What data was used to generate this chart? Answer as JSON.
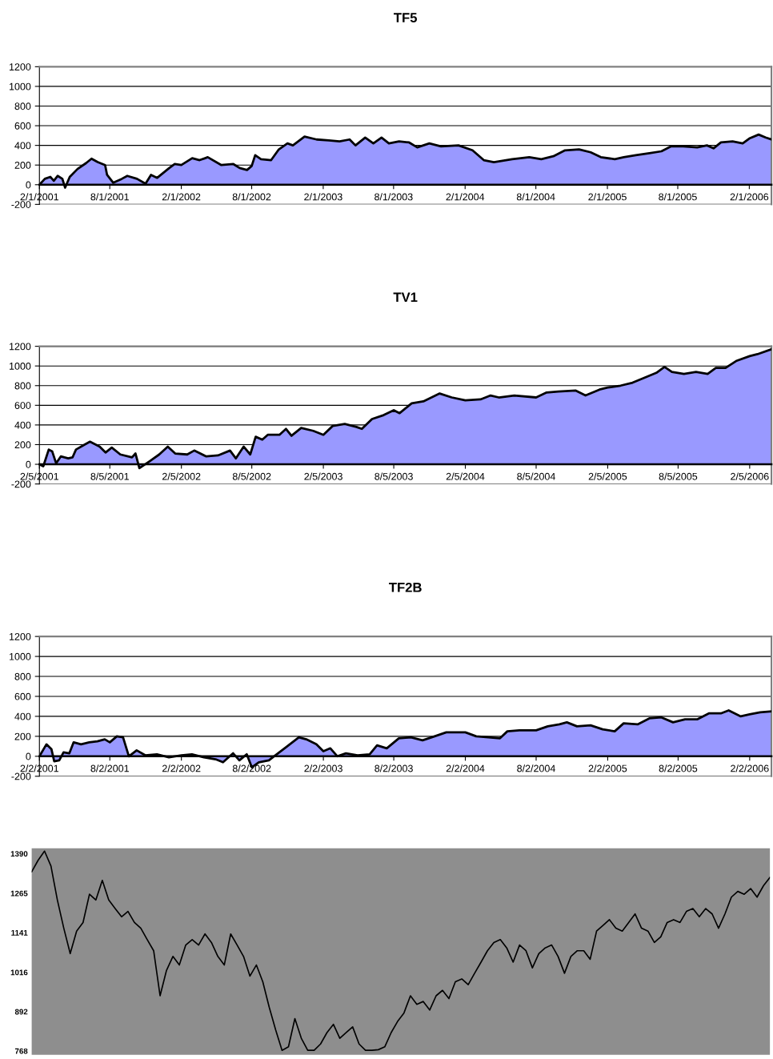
{
  "chart_data": [
    {
      "type": "area",
      "title": "TF5",
      "grid": "y",
      "ylim": [
        -200,
        1200
      ],
      "yticks": [
        -200,
        0,
        200,
        400,
        600,
        800,
        1000,
        1200
      ],
      "xlim": [
        "2001-02-01",
        "2006-03-30"
      ],
      "xticks": [
        {
          "value": "2001-02-01",
          "label": "2/1/2001"
        },
        {
          "value": "2001-08-01",
          "label": "8/1/2001"
        },
        {
          "value": "2002-02-01",
          "label": "2/1/2002"
        },
        {
          "value": "2002-08-01",
          "label": "8/1/2002"
        },
        {
          "value": "2003-02-01",
          "label": "2/1/2003"
        },
        {
          "value": "2003-08-01",
          "label": "8/1/2003"
        },
        {
          "value": "2004-02-01",
          "label": "2/1/2004"
        },
        {
          "value": "2004-08-01",
          "label": "8/1/2004"
        },
        {
          "value": "2005-02-01",
          "label": "2/1/2005"
        },
        {
          "value": "2005-08-01",
          "label": "8/1/2005"
        },
        {
          "value": "2006-02-01",
          "label": "2/1/2006"
        }
      ],
      "x": [
        "2001-02-01",
        "2001-02-15",
        "2001-03-01",
        "2001-03-10",
        "2001-03-20",
        "2001-04-01",
        "2001-04-08",
        "2001-04-20",
        "2001-05-10",
        "2001-06-01",
        "2001-06-15",
        "2001-07-01",
        "2001-07-20",
        "2001-07-25",
        "2001-08-10",
        "2001-09-01",
        "2001-09-15",
        "2001-10-10",
        "2001-11-01",
        "2001-11-15",
        "2001-12-01",
        "2002-01-01",
        "2002-01-15",
        "2002-02-01",
        "2002-03-01",
        "2002-03-20",
        "2002-04-10",
        "2002-05-15",
        "2002-06-15",
        "2002-07-01",
        "2002-07-20",
        "2002-08-01",
        "2002-08-10",
        "2002-08-25",
        "2002-09-20",
        "2002-10-10",
        "2002-11-01",
        "2002-11-15",
        "2002-12-15",
        "2003-01-15",
        "2003-02-15",
        "2003-03-15",
        "2003-04-10",
        "2003-04-25",
        "2003-05-20",
        "2003-06-10",
        "2003-07-01",
        "2003-07-20",
        "2003-08-15",
        "2003-09-10",
        "2003-10-01",
        "2003-11-01",
        "2003-12-01",
        "2004-01-15",
        "2004-02-20",
        "2004-03-20",
        "2004-04-15",
        "2004-06-01",
        "2004-07-15",
        "2004-08-15",
        "2004-09-15",
        "2004-10-15",
        "2004-11-20",
        "2004-12-20",
        "2005-01-15",
        "2005-02-20",
        "2005-03-15",
        "2005-04-15",
        "2005-05-20",
        "2005-06-20",
        "2005-07-15",
        "2005-08-15",
        "2005-09-20",
        "2005-10-15",
        "2005-11-01",
        "2005-11-20",
        "2005-12-20",
        "2006-01-15",
        "2006-02-01",
        "2006-02-25",
        "2006-03-15",
        "2006-03-30"
      ],
      "series": [
        {
          "color": "#9999ff",
          "values": [
            0,
            60,
            80,
            40,
            90,
            60,
            -30,
            80,
            160,
            220,
            265,
            230,
            200,
            100,
            20,
            60,
            90,
            60,
            10,
            100,
            70,
            170,
            210,
            200,
            270,
            250,
            280,
            200,
            210,
            170,
            150,
            190,
            300,
            260,
            250,
            360,
            420,
            400,
            490,
            460,
            450,
            440,
            460,
            400,
            480,
            420,
            480,
            420,
            440,
            430,
            380,
            420,
            390,
            400,
            350,
            250,
            230,
            260,
            280,
            260,
            290,
            350,
            360,
            330,
            280,
            260,
            280,
            300,
            320,
            340,
            390,
            390,
            380,
            400,
            370,
            430,
            440,
            420,
            470,
            510,
            480,
            460
          ]
        }
      ]
    },
    {
      "type": "area",
      "title": "TV1",
      "grid": "y",
      "ylim": [
        -200,
        1200
      ],
      "yticks": [
        -200,
        0,
        200,
        400,
        600,
        800,
        1000,
        1200
      ],
      "xlim": [
        "2001-02-05",
        "2006-04-02"
      ],
      "xticks": [
        {
          "value": "2001-02-05",
          "label": "2/5/2001"
        },
        {
          "value": "2001-08-05",
          "label": "8/5/2001"
        },
        {
          "value": "2002-02-05",
          "label": "2/5/2002"
        },
        {
          "value": "2002-08-05",
          "label": "8/5/2002"
        },
        {
          "value": "2003-02-05",
          "label": "2/5/2003"
        },
        {
          "value": "2003-08-05",
          "label": "8/5/2003"
        },
        {
          "value": "2004-02-05",
          "label": "2/5/2004"
        },
        {
          "value": "2004-08-05",
          "label": "8/5/2004"
        },
        {
          "value": "2005-02-05",
          "label": "2/5/2005"
        },
        {
          "value": "2005-08-05",
          "label": "8/5/2005"
        },
        {
          "value": "2006-02-05",
          "label": "2/5/2006"
        }
      ],
      "x": [
        "2001-02-05",
        "2001-02-15",
        "2001-03-01",
        "2001-03-10",
        "2001-03-20",
        "2001-04-01",
        "2001-04-20",
        "2001-05-01",
        "2001-05-10",
        "2001-06-01",
        "2001-06-15",
        "2001-07-10",
        "2001-07-25",
        "2001-08-10",
        "2001-09-01",
        "2001-10-01",
        "2001-10-10",
        "2001-10-20",
        "2001-11-15",
        "2001-12-10",
        "2002-01-01",
        "2002-01-20",
        "2002-02-20",
        "2002-03-10",
        "2002-04-10",
        "2002-05-10",
        "2002-06-10",
        "2002-06-25",
        "2002-07-15",
        "2002-08-01",
        "2002-08-15",
        "2002-09-01",
        "2002-09-15",
        "2002-10-15",
        "2002-11-01",
        "2002-11-15",
        "2002-12-10",
        "2003-01-10",
        "2003-02-05",
        "2003-03-01",
        "2003-04-01",
        "2003-05-01",
        "2003-05-15",
        "2003-06-10",
        "2003-07-10",
        "2003-08-05",
        "2003-08-20",
        "2003-09-20",
        "2003-10-20",
        "2003-12-01",
        "2004-01-01",
        "2004-02-05",
        "2004-03-15",
        "2004-04-10",
        "2004-05-01",
        "2004-06-10",
        "2004-08-05",
        "2004-09-01",
        "2004-10-01",
        "2004-11-15",
        "2004-12-10",
        "2005-01-15",
        "2005-02-05",
        "2005-03-10",
        "2005-04-10",
        "2005-05-10",
        "2005-06-10",
        "2005-07-01",
        "2005-07-20",
        "2005-08-20",
        "2005-09-20",
        "2005-10-20",
        "2005-11-10",
        "2005-12-05",
        "2006-01-01",
        "2006-02-05",
        "2006-02-25",
        "2006-04-02"
      ],
      "series": [
        {
          "color": "#9999ff",
          "values": [
            0,
            -20,
            150,
            130,
            10,
            80,
            60,
            70,
            150,
            200,
            230,
            180,
            120,
            170,
            100,
            70,
            110,
            -40,
            30,
            100,
            180,
            110,
            100,
            140,
            80,
            90,
            140,
            60,
            180,
            100,
            280,
            250,
            300,
            300,
            360,
            290,
            370,
            340,
            300,
            390,
            410,
            380,
            360,
            460,
            500,
            550,
            520,
            620,
            640,
            720,
            680,
            650,
            660,
            700,
            680,
            700,
            680,
            730,
            740,
            750,
            700,
            760,
            780,
            800,
            830,
            880,
            930,
            990,
            940,
            920,
            940,
            920,
            980,
            980,
            1050,
            1100,
            1120,
            1170
          ]
        }
      ]
    },
    {
      "type": "area",
      "title": "TF2B",
      "grid": "y",
      "ylim": [
        -200,
        1200
      ],
      "yticks": [
        -200,
        0,
        200,
        400,
        600,
        800,
        1000,
        1200
      ],
      "xlim": [
        "2001-02-02",
        "2006-03-30"
      ],
      "xticks": [
        {
          "value": "2001-02-02",
          "label": "2/2/2001"
        },
        {
          "value": "2001-08-02",
          "label": "8/2/2001"
        },
        {
          "value": "2002-02-02",
          "label": "2/2/2002"
        },
        {
          "value": "2002-08-02",
          "label": "8/2/2002"
        },
        {
          "value": "2003-02-02",
          "label": "2/2/2003"
        },
        {
          "value": "2003-08-02",
          "label": "8/2/2003"
        },
        {
          "value": "2004-02-02",
          "label": "2/2/2004"
        },
        {
          "value": "2004-08-02",
          "label": "8/2/2004"
        },
        {
          "value": "2005-02-02",
          "label": "2/2/2005"
        },
        {
          "value": "2005-08-02",
          "label": "8/2/2005"
        },
        {
          "value": "2006-02-02",
          "label": "2/2/2006"
        }
      ],
      "x": [
        "2001-02-02",
        "2001-02-20",
        "2001-03-05",
        "2001-03-12",
        "2001-03-25",
        "2001-04-05",
        "2001-04-20",
        "2001-05-01",
        "2001-05-20",
        "2001-06-10",
        "2001-07-01",
        "2001-07-20",
        "2001-08-02",
        "2001-08-20",
        "2001-09-05",
        "2001-09-20",
        "2001-10-10",
        "2001-11-01",
        "2001-12-01",
        "2002-01-01",
        "2002-02-02",
        "2002-03-01",
        "2002-04-01",
        "2002-05-01",
        "2002-05-20",
        "2002-06-15",
        "2002-07-01",
        "2002-07-20",
        "2002-08-02",
        "2002-08-20",
        "2002-09-15",
        "2002-10-05",
        "2002-11-01",
        "2002-12-01",
        "2002-12-20",
        "2003-01-15",
        "2003-02-02",
        "2003-02-20",
        "2003-03-10",
        "2003-04-01",
        "2003-05-01",
        "2003-06-01",
        "2003-06-20",
        "2003-07-15",
        "2003-08-15",
        "2003-09-15",
        "2003-10-15",
        "2003-11-15",
        "2003-12-15",
        "2004-02-02",
        "2004-03-01",
        "2004-04-01",
        "2004-05-01",
        "2004-05-20",
        "2004-06-20",
        "2004-08-02",
        "2004-09-01",
        "2004-10-01",
        "2004-10-20",
        "2004-11-15",
        "2004-12-20",
        "2005-01-20",
        "2005-02-20",
        "2005-03-15",
        "2005-04-20",
        "2005-05-20",
        "2005-06-20",
        "2005-07-20",
        "2005-08-20",
        "2005-09-20",
        "2005-10-20",
        "2005-11-20",
        "2005-12-10",
        "2006-01-10",
        "2006-02-02",
        "2006-03-01",
        "2006-03-30"
      ],
      "series": [
        {
          "color": "#9999ff",
          "values": [
            0,
            120,
            70,
            -50,
            -40,
            40,
            30,
            140,
            120,
            140,
            150,
            170,
            140,
            200,
            190,
            0,
            60,
            10,
            20,
            -10,
            10,
            20,
            -10,
            -30,
            -60,
            30,
            -40,
            20,
            -110,
            -60,
            -40,
            20,
            100,
            190,
            170,
            120,
            50,
            80,
            0,
            30,
            10,
            20,
            110,
            80,
            180,
            190,
            160,
            200,
            240,
            240,
            200,
            190,
            180,
            250,
            260,
            260,
            300,
            320,
            340,
            300,
            310,
            270,
            250,
            330,
            320,
            380,
            390,
            340,
            370,
            370,
            430,
            430,
            460,
            400,
            420,
            440,
            450
          ]
        }
      ]
    },
    {
      "type": "line",
      "tick_labels": "y",
      "ylim": [
        756,
        1407
      ],
      "yticks": [
        768,
        892,
        1016,
        1141,
        1265,
        1390
      ],
      "categories": [
        null,
        null,
        null,
        null,
        null,
        null,
        null,
        null,
        null,
        null,
        null,
        null,
        null,
        null,
        null,
        null,
        null,
        null,
        null,
        null,
        null,
        null,
        null,
        null,
        null,
        null,
        null,
        null,
        null,
        null,
        null,
        null,
        null,
        null,
        null,
        null,
        null,
        null,
        null,
        null,
        null,
        null,
        null,
        null,
        null,
        null,
        null,
        null,
        null,
        null,
        null,
        null,
        null,
        null,
        null,
        null,
        null,
        null,
        null,
        null,
        null,
        null,
        null,
        null,
        null,
        null,
        null,
        null,
        null,
        null,
        null,
        null,
        null,
        null,
        null,
        null,
        null,
        null,
        null,
        null,
        null,
        null,
        null,
        null,
        null,
        null,
        null,
        null,
        null,
        null,
        null,
        null,
        null,
        null,
        null,
        null,
        null,
        null,
        null,
        null,
        null,
        null,
        null,
        null,
        null,
        null,
        null,
        null,
        null,
        null,
        null,
        null,
        null,
        null,
        null,
        null
      ],
      "series": [
        {
          "color": "#000000",
          "values": [
            1333,
            1369,
            1398,
            1351,
            1244,
            1155,
            1075,
            1146,
            1173,
            1262,
            1244,
            1306,
            1244,
            1217,
            1191,
            1208,
            1173,
            1155,
            1119,
            1084,
            942,
            1022,
            1066,
            1039,
            1102,
            1119,
            1102,
            1137,
            1110,
            1066,
            1039,
            1137,
            1102,
            1066,
            1004,
            1039,
            986,
            906,
            835,
            770,
            781,
            870,
            808,
            770,
            770,
            790,
            826,
            852,
            808,
            826,
            844,
            790,
            770,
            770,
            772,
            781,
            826,
            861,
            888,
            942,
            915,
            924,
            897,
            942,
            959,
            933,
            986,
            995,
            977,
            1013,
            1048,
            1084,
            1110,
            1119,
            1093,
            1048,
            1102,
            1084,
            1030,
            1075,
            1093,
            1102,
            1066,
            1013,
            1066,
            1084,
            1084,
            1057,
            1146,
            1164,
            1182,
            1155,
            1146,
            1173,
            1200,
            1155,
            1146,
            1110,
            1128,
            1173,
            1182,
            1173,
            1208,
            1217,
            1191,
            1217,
            1200,
            1155,
            1200,
            1253,
            1271,
            1262,
            1280,
            1253,
            1289,
            1315
          ]
        }
      ]
    }
  ]
}
